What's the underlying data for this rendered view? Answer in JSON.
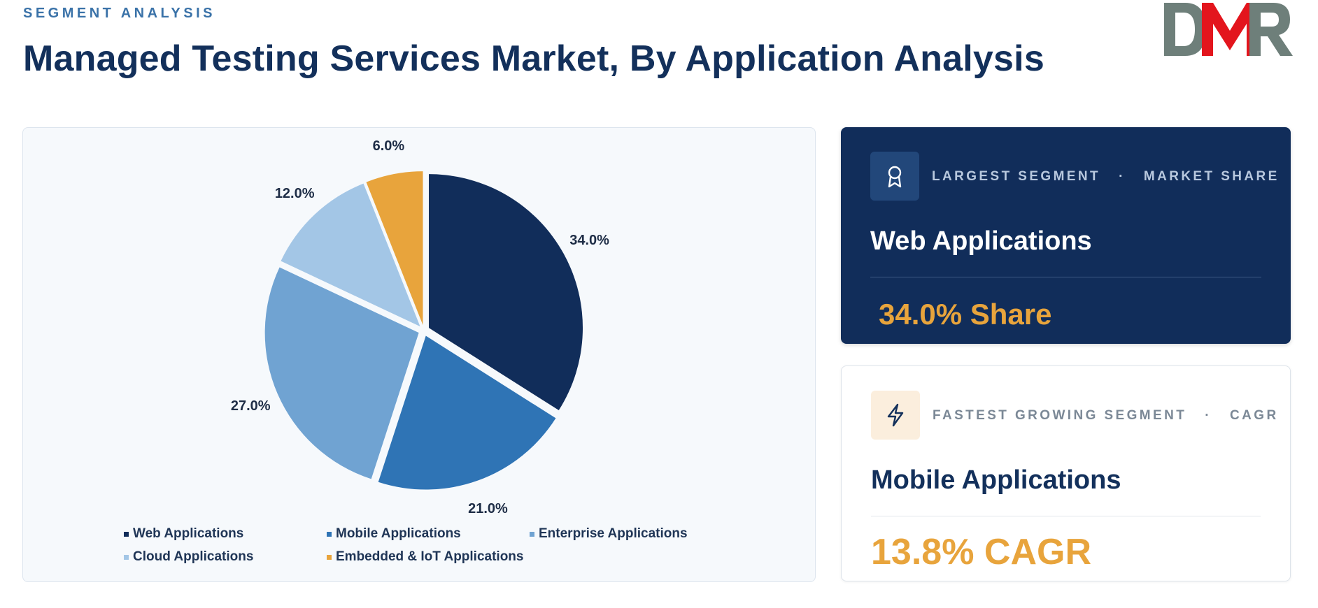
{
  "header": {
    "eyebrow": "SEGMENT ANALYSIS",
    "title": "Managed Testing Services Market, By Application Analysis"
  },
  "logo": {
    "text": "DMR",
    "colors": {
      "d": "#6e7f7a",
      "m": "#e3151d",
      "r": "#6e7f7a"
    }
  },
  "chart_data": {
    "type": "pie",
    "title": "",
    "start_angle_deg": 0,
    "direction": "clockwise",
    "label_suffix": "%",
    "categories": [
      "Web Applications",
      "Mobile Applications",
      "Enterprise Applications",
      "Cloud Applications",
      "Embedded & IoT Applications"
    ],
    "values": [
      34.0,
      21.0,
      27.0,
      12.0,
      6.0
    ],
    "labels": [
      "34.0%",
      "21.0%",
      "27.0%",
      "12.0%",
      "6.0%"
    ],
    "colors": [
      "#112d5a",
      "#2f74b5",
      "#70a3d2",
      "#a3c6e6",
      "#e8a43c"
    ],
    "legend": "bottom"
  },
  "cards": {
    "largest": {
      "icon": "award-ribbon-icon",
      "tag_left": "LARGEST SEGMENT",
      "tag_sep": "·",
      "tag_right": "MARKET SHARE",
      "name": "Web Applications",
      "value": "34.0% Share"
    },
    "fastest": {
      "icon": "lightning-bolt-icon",
      "tag_left": "FASTEST GROWING SEGMENT",
      "tag_sep": "·",
      "tag_right": "CAGR",
      "name": "Mobile Applications",
      "value": "13.8% CAGR"
    }
  }
}
